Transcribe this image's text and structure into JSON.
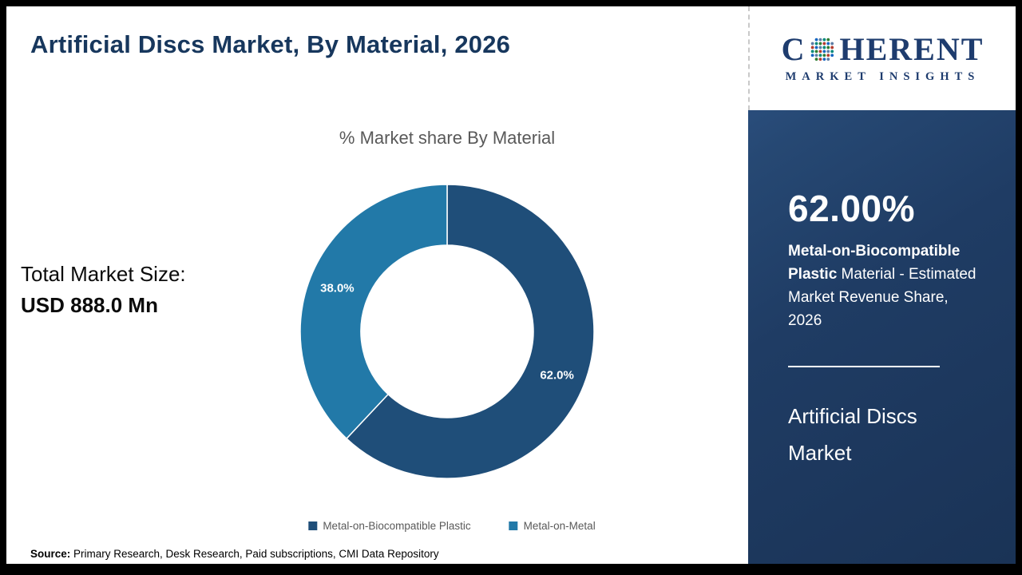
{
  "header": {
    "title": "Artificial Discs Market, By Material, 2026"
  },
  "logo": {
    "line1_pre": "C",
    "line1_post": "HERENT",
    "line2": "MARKET INSIGHTS",
    "text_color": "#1e3c6e",
    "dot_colors": [
      "#2e7d32",
      "#1565c0",
      "#00897b",
      "#b23b2e",
      "#5c7da5"
    ]
  },
  "chart_data": {
    "type": "donut",
    "title": "% Market share By Material",
    "labels": [
      "Metal-on-Biocompatible Plastic",
      "Metal-on-Metal"
    ],
    "values": [
      62.0,
      38.0
    ],
    "value_labels": [
      "62.0%",
      "38.0%"
    ],
    "colors": [
      "#1f4e79",
      "#2279a8"
    ],
    "legend_position": "bottom",
    "start_angle_deg": 0,
    "direction": "clockwise"
  },
  "total": {
    "label": "Total Market Size:",
    "value": "USD 888.0 Mn"
  },
  "source": {
    "label": "Source:",
    "text": " Primary Research, Desk Research, Paid subscriptions, CMI Data Repository"
  },
  "sidebar": {
    "stat_value": "62.00%",
    "stat_highlight": "Metal-on-Biocompatible Plastic",
    "stat_rest": " Material - Estimated Market Revenue Share, 2026",
    "market_name": "Artificial Discs Market",
    "bg_color": "#1f3c64",
    "accent_text_color": "#ffffff"
  }
}
